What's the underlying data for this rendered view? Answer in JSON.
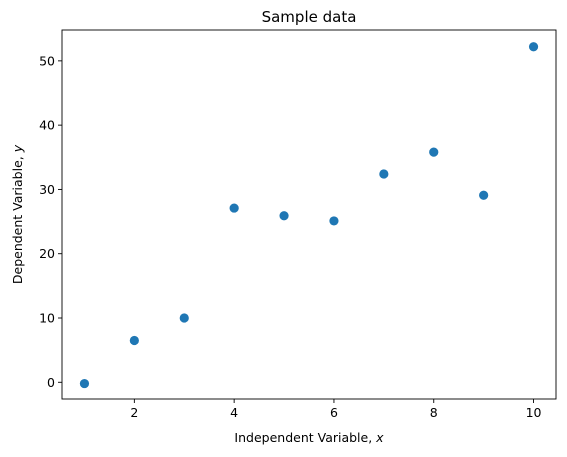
{
  "chart_data": {
    "type": "scatter",
    "title": "Sample data",
    "xlabel": {
      "prefix": "Independent Variable, ",
      "var": "x"
    },
    "ylabel": {
      "prefix": "Dependent Variable, ",
      "var": "y"
    },
    "xlim": [
      0.55,
      10.45
    ],
    "ylim": [
      -2.6,
      54.8
    ],
    "xticks": [
      2,
      4,
      6,
      8,
      10
    ],
    "yticks": [
      0,
      10,
      20,
      30,
      40,
      50
    ],
    "grid": false,
    "x": [
      1,
      2,
      3,
      4,
      5,
      6,
      7,
      8,
      9,
      10
    ],
    "y": [
      -0.2,
      6.5,
      10.0,
      27.1,
      25.9,
      25.1,
      32.4,
      35.8,
      29.1,
      52.2
    ],
    "marker_color": "#1f77b4"
  }
}
